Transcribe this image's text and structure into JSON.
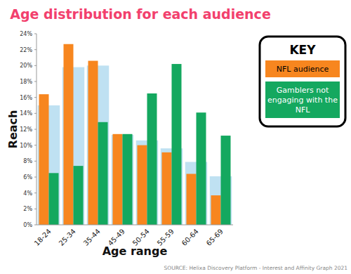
{
  "chart_data": {
    "type": "bar",
    "title": "Age distribution for each audience",
    "x_label": "Age range",
    "y_label": "Reach",
    "legend_title": "KEY",
    "source": "SOURCE: Helixa Discovery Platform - Interest and Affinity Graph 2021",
    "categories": [
      "18-24",
      "25-34",
      "35-44",
      "45-49",
      "50-54",
      "55-59",
      "60-64",
      "65-69"
    ],
    "series": [
      {
        "color": "#bfe1f2",
        "values": [
          15,
          19.8,
          20,
          11.3,
          10.6,
          9.6,
          7.9,
          6.1
        ]
      },
      {
        "name": "NFL audience",
        "color": "#f7861f",
        "values": [
          16.4,
          22.7,
          20.6,
          11.4,
          10,
          9.1,
          6.4,
          3.7
        ]
      },
      {
        "name": "Gamblers not engaging with the NFL",
        "color": "#14a85f",
        "values": [
          6.5,
          7.4,
          12.9,
          11.4,
          16.5,
          20.2,
          14.1,
          11.2
        ]
      }
    ],
    "ylim": [
      0,
      24
    ],
    "yticks": [
      {
        "value": 0,
        "label": "0%"
      },
      {
        "value": 2,
        "label": "2%"
      },
      {
        "value": 4,
        "label": "4%"
      },
      {
        "value": 6,
        "label": "6%"
      },
      {
        "value": 8,
        "label": "8%"
      },
      {
        "value": 10,
        "label": "10%"
      },
      {
        "value": 12,
        "label": "12%"
      },
      {
        "value": 14,
        "label": "14%"
      },
      {
        "value": 16,
        "label": "16%"
      },
      {
        "value": 18,
        "label": "18%"
      },
      {
        "value": 20,
        "label": "20%"
      },
      {
        "value": 22,
        "label": "22%"
      },
      {
        "value": 24,
        "label": "24%"
      }
    ],
    "grid": false,
    "legend": "top-right"
  }
}
